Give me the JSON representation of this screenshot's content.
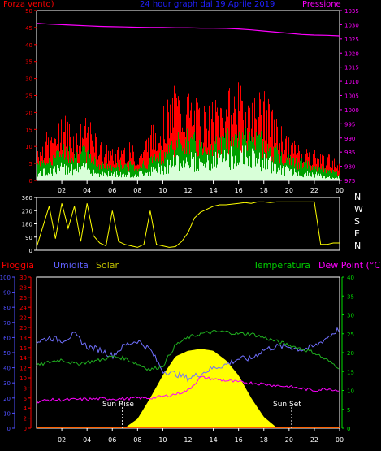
{
  "header": {
    "wind_title": "Forza vento)",
    "center_title": "24 hour graph dal 19 Aprile 2019",
    "pressure_title": "Pressione"
  },
  "bottom_header": {
    "rain": "Pioggia",
    "humidity": "Umidita",
    "solar": "Solar",
    "temperature": "Temperatura",
    "dewpoint": "Dew Point (°C)"
  },
  "compass": [
    "N",
    "W",
    "S",
    "E",
    "N"
  ],
  "annotations": {
    "sunrise": "Sun Rise",
    "sunset": "Sun Set"
  },
  "colors": {
    "wind_gust": "#ff0000",
    "wind_avg": "#00a000",
    "wind_min": "#d8ffd8",
    "pressure": "#ff00ff",
    "direction": "#ffff00",
    "humidity": "#7070ff",
    "solar": "#ffff00",
    "temperature": "#20b020",
    "dewpoint": "#ff00ff",
    "rain": "#ff6000",
    "axis_left": "#ff0000",
    "axis_humidity": "#5050ff",
    "axis_right_pressure": "#ff00ff",
    "axis_right_temp": "#00e000",
    "time_axis": "#ffffff"
  },
  "chart_data": [
    {
      "type": "line",
      "id": "wind_pressure",
      "title": "24 hour graph dal 19 Aprile 2019",
      "x_ticks": [
        "02",
        "04",
        "06",
        "08",
        "10",
        "12",
        "14",
        "16",
        "18",
        "20",
        "22",
        "00"
      ],
      "y_left_ticks": [
        "50",
        "45",
        "40",
        "35",
        "30",
        "25",
        "20",
        "15",
        "10",
        "5",
        "0"
      ],
      "y_right_ticks": [
        "1035",
        "1030",
        "1025",
        "1020",
        "1015",
        "1010",
        "1005",
        "1000",
        "995",
        "990",
        "985",
        "980",
        "975"
      ],
      "ylim_left": [
        0,
        50
      ],
      "ylim_right": [
        975,
        1035
      ],
      "x_hours": [
        0,
        1,
        2,
        3,
        4,
        5,
        6,
        7,
        8,
        9,
        10,
        11,
        12,
        13,
        14,
        15,
        16,
        17,
        18,
        19,
        20,
        21,
        22,
        23,
        24
      ],
      "series": [
        {
          "name": "Pressione",
          "axis": "right",
          "values": [
            1030.5,
            1030.2,
            1030.0,
            1029.8,
            1029.6,
            1029.4,
            1029.3,
            1029.2,
            1029.1,
            1029.0,
            1029.0,
            1028.9,
            1028.9,
            1028.8,
            1028.8,
            1028.7,
            1028.5,
            1028.2,
            1027.8,
            1027.4,
            1027.0,
            1026.6,
            1026.4,
            1026.3,
            1026.1
          ]
        },
        {
          "axis": "left",
          "values": [
            9,
            11,
            16,
            12,
            14,
            9,
            7,
            9,
            7,
            12,
            16,
            22,
            20,
            17,
            18,
            20,
            22,
            20,
            20,
            14,
            10,
            8,
            7,
            6,
            5
          ]
        },
        {
          "axis": "left",
          "values": [
            5,
            6,
            9,
            8,
            8,
            5,
            4,
            5,
            4,
            6,
            8,
            12,
            12,
            10,
            10,
            12,
            13,
            12,
            11,
            8,
            6,
            5,
            4,
            3,
            2
          ]
        },
        {
          "axis": "left",
          "values": [
            2,
            3,
            4,
            4,
            4,
            2,
            2,
            2,
            2,
            3,
            4,
            6,
            7,
            5,
            6,
            7,
            8,
            7,
            6,
            4,
            3,
            2,
            2,
            1,
            1
          ]
        }
      ]
    },
    {
      "type": "line",
      "id": "direction",
      "y_ticks": [
        "360",
        "270",
        "180",
        "90",
        "0"
      ],
      "ylim": [
        0,
        360
      ],
      "x_hours": [
        0,
        1,
        1.5,
        2,
        2.5,
        3,
        3.5,
        4,
        4.5,
        5,
        5.5,
        6,
        6.5,
        7,
        7.5,
        8,
        8.5,
        9,
        9.5,
        10,
        10.5,
        11,
        11.5,
        12,
        12.5,
        13,
        13.5,
        14,
        14.5,
        15,
        15.5,
        16,
        16.5,
        17,
        17.5,
        18,
        18.5,
        19,
        19.5,
        20,
        20.5,
        21,
        21.5,
        22,
        22.5,
        23,
        23.5,
        24
      ],
      "values": [
        20,
        300,
        80,
        320,
        150,
        300,
        60,
        320,
        100,
        50,
        30,
        270,
        60,
        40,
        30,
        20,
        40,
        270,
        40,
        30,
        20,
        25,
        60,
        120,
        220,
        260,
        280,
        300,
        310,
        310,
        315,
        320,
        325,
        320,
        330,
        330,
        325,
        330,
        330,
        330,
        330,
        330,
        330,
        330,
        40,
        40,
        50,
        50
      ]
    },
    {
      "type": "line",
      "id": "meteo",
      "x_ticks": [
        "02",
        "04",
        "06",
        "08",
        "10",
        "12",
        "14",
        "16",
        "18",
        "20",
        "22",
        "00"
      ],
      "y_humidity_ticks": [
        "100",
        "90",
        "80",
        "70",
        "60",
        "50",
        "40",
        "30",
        "20",
        "10",
        "0"
      ],
      "y_rain_ticks": [
        "30",
        "28",
        "26",
        "24",
        "22",
        "20",
        "18",
        "16",
        "14",
        "12",
        "10",
        "8",
        "6",
        "4",
        "2",
        "0"
      ],
      "y_temp_ticks": [
        "40",
        "35",
        "30",
        "25",
        "20",
        "15",
        "10",
        "5",
        "0"
      ],
      "ylim_humidity": [
        0,
        100
      ],
      "ylim_temp": [
        0,
        40
      ],
      "ylim_rain": [
        0,
        30
      ],
      "x_hours": [
        0,
        1,
        2,
        3,
        4,
        5,
        6,
        7,
        8,
        9,
        10,
        11,
        12,
        13,
        14,
        15,
        16,
        17,
        18,
        19,
        20,
        21,
        22,
        23,
        24
      ],
      "series": [
        {
          "name": "Umidita",
          "axis": "humidity",
          "values": [
            57,
            60,
            58,
            62,
            54,
            52,
            48,
            55,
            58,
            52,
            38,
            36,
            33,
            36,
            40,
            42,
            46,
            46,
            52,
            54,
            54,
            52,
            54,
            60,
            66
          ]
        },
        {
          "name": "Temperatura",
          "axis": "temp",
          "values": [
            16.5,
            17.5,
            18.2,
            17,
            17.5,
            18,
            19,
            18.5,
            17,
            15.5,
            16.5,
            22,
            24,
            25,
            25.5,
            25.5,
            25,
            25,
            24,
            23,
            22,
            21,
            20,
            18,
            16
          ]
        },
        {
          "name": "Dew Point (°C)",
          "axis": "temp",
          "values": [
            7,
            7.5,
            7.5,
            7.6,
            7.7,
            7.8,
            7.8,
            7.8,
            8,
            8,
            8.4,
            9,
            10,
            13.5,
            13,
            12.6,
            12.2,
            12,
            11.7,
            11.3,
            11,
            10.5,
            10,
            10.5,
            10
          ]
        },
        {
          "name": "Solar",
          "axis": "temp",
          "values": [
            0,
            0,
            0,
            0,
            0,
            0,
            0,
            0.1,
            2.5,
            8,
            14,
            19,
            20.5,
            21,
            20.5,
            18,
            14,
            8,
            3,
            0.2,
            0,
            0,
            0,
            0,
            0
          ]
        },
        {
          "name": "Pioggia",
          "axis": "rain",
          "values": [
            0,
            0,
            0,
            0,
            0,
            0,
            0,
            0,
            0,
            0,
            0,
            0,
            0,
            0,
            0,
            0,
            0,
            0,
            0,
            0,
            0,
            0,
            0,
            0,
            0
          ]
        }
      ]
    }
  ]
}
